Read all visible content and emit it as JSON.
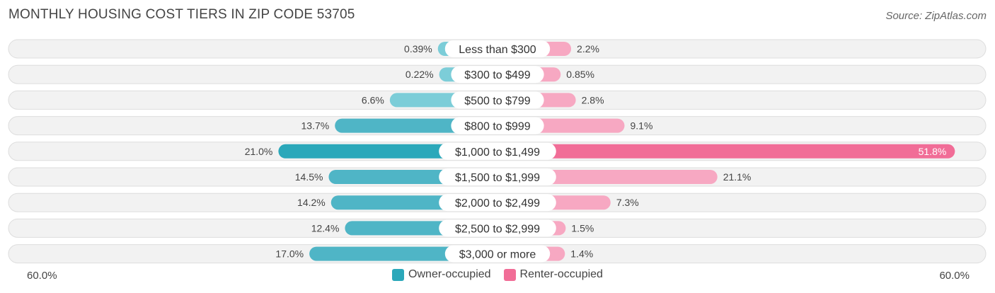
{
  "title": "MONTHLY HOUSING COST TIERS IN ZIP CODE 53705",
  "source": "Source: ZipAtlas.com",
  "colors": {
    "owner_light": "#7ccdd8",
    "owner_dark": "#2ba8ba",
    "renter_light": "#f7a8c2",
    "renter_dark": "#f16d97",
    "row_bg": "#f2f2f2",
    "row_border": "#dddddd"
  },
  "chart_data": {
    "type": "bar",
    "orientation": "horizontal-diverging",
    "title": "MONTHLY HOUSING COST TIERS IN ZIP CODE 53705",
    "categories": [
      "Less than $300",
      "$300 to $499",
      "$500 to $799",
      "$800 to $999",
      "$1,000 to $1,499",
      "$1,500 to $1,999",
      "$2,000 to $2,499",
      "$2,500 to $2,999",
      "$3,000 or more"
    ],
    "series": [
      {
        "name": "Owner-occupied",
        "values": [
          0.39,
          0.22,
          6.6,
          13.7,
          21.0,
          14.5,
          14.2,
          12.4,
          17.0
        ],
        "labels": [
          "0.39%",
          "0.22%",
          "6.6%",
          "13.7%",
          "21.0%",
          "14.5%",
          "14.2%",
          "12.4%",
          "17.0%"
        ]
      },
      {
        "name": "Renter-occupied",
        "values": [
          2.2,
          0.85,
          2.8,
          9.1,
          51.8,
          21.1,
          7.3,
          1.5,
          1.4
        ],
        "labels": [
          "2.2%",
          "0.85%",
          "2.8%",
          "9.1%",
          "51.8%",
          "21.1%",
          "7.3%",
          "1.5%",
          "1.4%"
        ]
      }
    ],
    "xlim": [
      -60,
      60
    ],
    "axis_left_label": "60.0%",
    "axis_right_label": "60.0%",
    "legend_position": "bottom-center"
  }
}
